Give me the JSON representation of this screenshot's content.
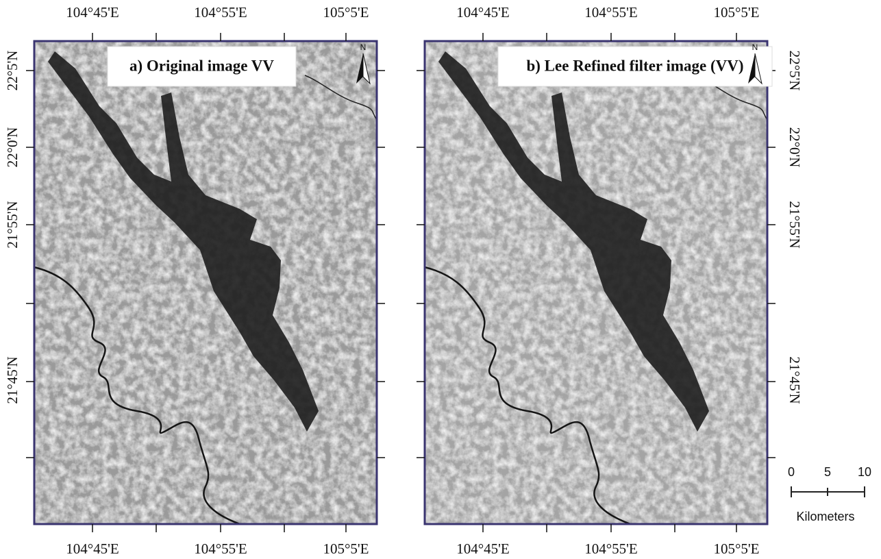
{
  "panels": [
    {
      "title": "a) Original image VV",
      "north": "N",
      "lon_labels_top": [
        "104°45'E",
        "104°55'E",
        "105°5'E"
      ],
      "lon_labels_bottom": [
        "104°45'E",
        "104°55'E",
        "105°5'E"
      ],
      "lat_labels": [
        "22°5'N",
        "22°0'N",
        "21°55'N",
        "21°45'N"
      ]
    },
    {
      "title": "b) Lee Refined filter image (VV)",
      "north": "N",
      "lon_labels_top": [
        "104°45'E",
        "104°55'E",
        "105°5'E"
      ],
      "lon_labels_bottom": [
        "104°45'E",
        "104°55'E",
        "105°5'E"
      ],
      "lat_labels": [
        "22°5'N",
        "22°0'N",
        "21°55'N",
        "21°45'N"
      ]
    }
  ],
  "scale_bar": {
    "labels": [
      "0",
      "5",
      "10"
    ],
    "unit": "Kilometers"
  }
}
